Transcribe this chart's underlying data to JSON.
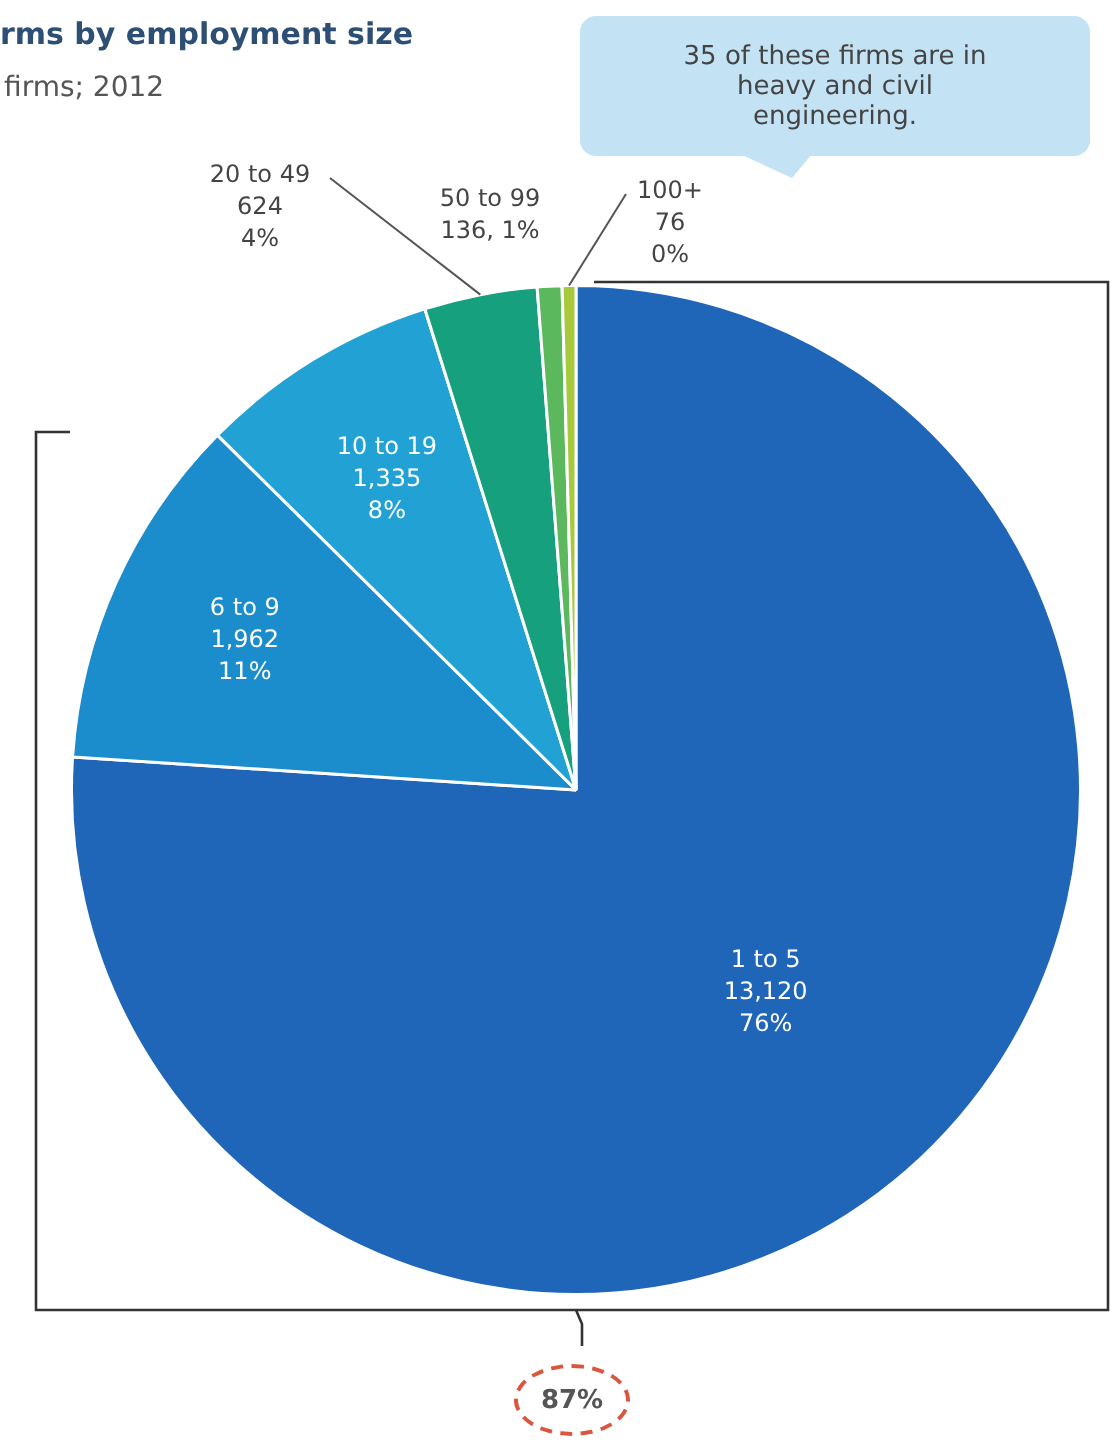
{
  "chart_data": {
    "type": "pie",
    "title": "rms by employment size",
    "subtitle": "firms; 2012",
    "categories": [
      "1 to 5",
      "6 to 9",
      "10 to 19",
      "20 to 49",
      "50 to 99",
      "100+"
    ],
    "values": [
      13120,
      1962,
      1335,
      624,
      136,
      76
    ],
    "value_labels": [
      "13,120\n76%",
      "1,962\n11%",
      "1,335\n8%",
      "624\n4%",
      "136, 1%",
      "76\n0%"
    ],
    "colors": [
      "#1f66b8",
      "#1b8ccc",
      "#22a2d4",
      "#16a07e",
      "#5cb85c",
      "#a9c93c"
    ],
    "legend": false,
    "annotations": [
      "35 of these firms are in heavy and civil engineering.",
      "87%"
    ]
  }
}
